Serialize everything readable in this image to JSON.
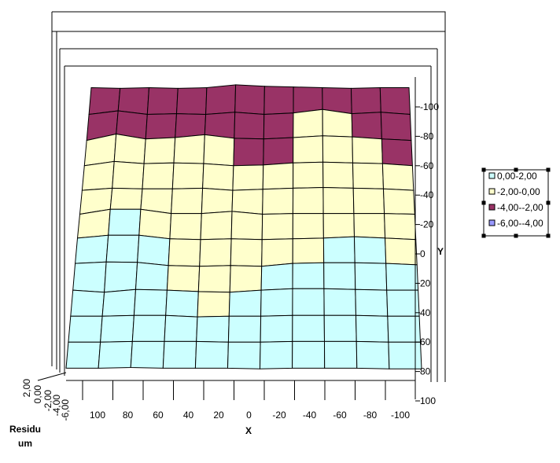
{
  "chart_data": {
    "type": "surface",
    "title": "",
    "xlabel": "X",
    "ylabel": "Y",
    "zlabel": "Residuum",
    "zlabel_lines": [
      "Residu",
      "um"
    ],
    "x_ticks": [
      "100",
      "80",
      "60",
      "40",
      "20",
      "0",
      "-20",
      "-40",
      "-60",
      "-80",
      "-100"
    ],
    "y_ticks": [
      "-100",
      "-80",
      "-60",
      "-40",
      "-20",
      "0",
      "20",
      "40",
      "60",
      "80",
      "100"
    ],
    "z_ticks": [
      "2,00",
      "0,00",
      "-2,00",
      "-4,00",
      "-6,00"
    ],
    "x": [
      110,
      90,
      70,
      50,
      30,
      10,
      -10,
      -30,
      -50,
      -70,
      -90,
      -110
    ],
    "y": [
      -110,
      -90,
      -70,
      -50,
      -30,
      -10,
      10,
      30,
      50,
      70,
      90,
      110
    ],
    "legend": [
      {
        "label": "0,00-2,00",
        "color": "#ccffff"
      },
      {
        "label": "-2,00-0,00",
        "color": "#ffffcc"
      },
      {
        "label": "-4,00--2,00",
        "color": "#993366"
      },
      {
        "label": "-6,00--4,00",
        "color": "#9999ff"
      }
    ],
    "z": [
      [
        -3.0,
        -3.2,
        -3.0,
        -3.2,
        -3.0,
        -2.2,
        -2.6,
        -2.8,
        -3.0,
        -3.2,
        -3.0,
        -3.0
      ],
      [
        -3.0,
        -2.0,
        -3.0,
        -2.8,
        -3.0,
        -2.4,
        -3.0,
        -2.6,
        -1.6,
        -2.8,
        -2.4,
        -3.0
      ],
      [
        -2.8,
        -1.0,
        -2.4,
        -2.0,
        -1.2,
        -2.2,
        -2.4,
        -2.0,
        -1.5,
        -1.8,
        -2.4,
        -2.8
      ],
      [
        -2.4,
        -1.2,
        -1.8,
        -1.6,
        -1.8,
        -2.4,
        -2.2,
        -1.6,
        -1.4,
        -1.6,
        -1.8,
        -2.4
      ],
      [
        -1.8,
        -1.2,
        -1.4,
        -1.4,
        -1.2,
        -1.8,
        -1.5,
        -1.2,
        -1.0,
        -1.2,
        -1.4,
        -1.8
      ],
      [
        -1.0,
        0.4,
        0.4,
        -0.8,
        -0.8,
        -0.2,
        -1.0,
        -0.8,
        -0.8,
        -0.8,
        -0.8,
        -1.0
      ],
      [
        -0.2,
        0.6,
        0.6,
        -0.4,
        -0.6,
        -0.4,
        -0.6,
        -0.4,
        -0.2,
        0.2,
        -0.2,
        -0.6
      ],
      [
        0.2,
        0.6,
        0.5,
        -0.4,
        -0.6,
        -0.4,
        -0.6,
        0.2,
        0.4,
        0.4,
        0.2,
        -0.2
      ],
      [
        0.2,
        -0.4,
        0.4,
        0.2,
        -0.2,
        -0.4,
        0.2,
        0.6,
        0.6,
        0.4,
        0.2,
        0.2
      ],
      [
        0.4,
        0.4,
        0.6,
        0.6,
        0.2,
        0.4,
        0.4,
        0.6,
        0.6,
        0.6,
        0.4,
        0.4
      ],
      [
        0.6,
        0.6,
        0.8,
        0.8,
        0.8,
        0.6,
        0.6,
        0.8,
        0.8,
        0.8,
        0.6,
        0.6
      ],
      [
        0.8,
        0.8,
        1.0,
        0.8,
        0.8,
        0.8,
        0.6,
        0.8,
        0.8,
        0.8,
        0.6,
        0.6
      ]
    ]
  }
}
